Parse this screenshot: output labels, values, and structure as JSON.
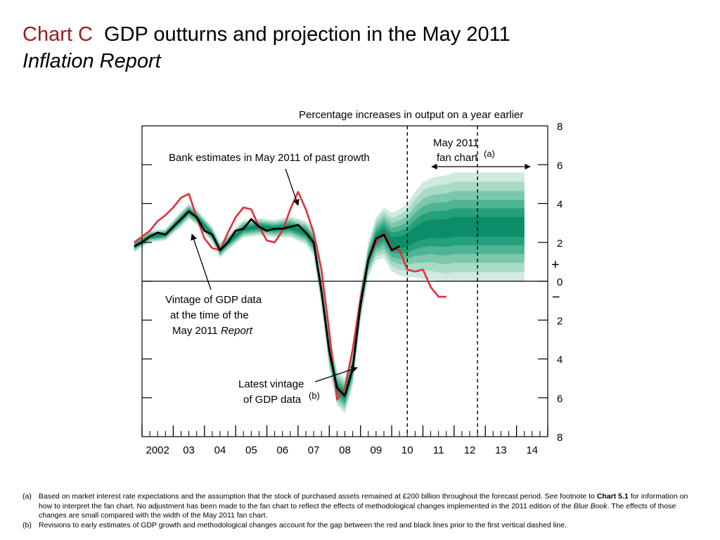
{
  "slide": {
    "title_tag": "Chart C",
    "title_main": "GDP outturns and projection in the May 2011",
    "title_sub": "Inflation Report"
  },
  "chart_data": {
    "type": "line",
    "title": "Percentage increases in output on a year earlier",
    "xlabels": [
      "2002",
      "03",
      "04",
      "05",
      "06",
      "07",
      "08",
      "09",
      "10",
      "11",
      "12",
      "13",
      "14"
    ],
    "xlim": [
      2002.0,
      2015.0
    ],
    "ylim": [
      -8,
      8
    ],
    "yticks_right": [
      "8",
      "6",
      "4",
      "2",
      "0",
      "2",
      "4",
      "6",
      "8"
    ],
    "sign_plus": "+",
    "sign_minus": "−",
    "vlines_dashed": [
      2010.5,
      2012.75
    ],
    "zero_line": 0,
    "fan_region_label_line1": "May 2011",
    "fan_region_label_line2": "fan chart",
    "fan_region_label_note": "(a)",
    "colors": {
      "red": "#e0303a",
      "black": "#000000",
      "fan_light": "#bfe3d3",
      "fan_mid": "#52b596",
      "fan_dark": "#0f8a68"
    },
    "annotations": {
      "bank_estimates": "Bank estimates in May 2011 of past growth",
      "vintage_line1": "Vintage of GDP data",
      "vintage_line2": "at the time of the",
      "vintage_line3_a": "May 2011 ",
      "vintage_line3_b": "Report",
      "latest_line1": "Latest vintage",
      "latest_line2": "of GDP data",
      "latest_note": "(b)"
    },
    "series": [
      {
        "name": "Latest vintage of GDP data",
        "color": "#e0303a",
        "x": [
          2001.75,
          2002.0,
          2002.25,
          2002.5,
          2002.75,
          2003.0,
          2003.25,
          2003.5,
          2003.75,
          2004.0,
          2004.25,
          2004.5,
          2004.75,
          2005.0,
          2005.25,
          2005.5,
          2005.75,
          2006.0,
          2006.25,
          2006.5,
          2006.75,
          2007.0,
          2007.25,
          2007.5,
          2007.75,
          2008.0,
          2008.25,
          2008.5,
          2008.75,
          2009.0,
          2009.25,
          2009.5,
          2009.75,
          2010.0,
          2010.25,
          2010.5,
          2010.75,
          2011.0,
          2011.25,
          2011.5,
          2011.75
        ],
        "values": [
          2.0,
          2.3,
          2.6,
          3.1,
          3.4,
          3.8,
          4.3,
          4.5,
          3.3,
          2.2,
          1.7,
          1.6,
          2.5,
          3.3,
          3.8,
          3.7,
          2.8,
          2.1,
          2.0,
          2.6,
          3.7,
          4.6,
          3.7,
          2.5,
          0.6,
          -2.6,
          -6.1,
          -5.5,
          -3.5,
          -0.9,
          1.1,
          2.0,
          2.5,
          1.7,
          1.6,
          0.6,
          0.5,
          0.6,
          -0.3,
          -0.8,
          -0.8
        ]
      },
      {
        "name": "Vintage of GDP data at the time of the May 2011 Report",
        "color": "#000000",
        "x": [
          2001.75,
          2002.0,
          2002.25,
          2002.5,
          2002.75,
          2003.0,
          2003.25,
          2003.5,
          2003.75,
          2004.0,
          2004.25,
          2004.5,
          2004.75,
          2005.0,
          2005.25,
          2005.5,
          2005.75,
          2006.0,
          2006.25,
          2006.5,
          2006.75,
          2007.0,
          2007.25,
          2007.5,
          2007.75,
          2008.0,
          2008.25,
          2008.5,
          2008.75,
          2009.0,
          2009.25,
          2009.5,
          2009.75,
          2010.0,
          2010.25
        ],
        "values": [
          1.8,
          2.0,
          2.3,
          2.5,
          2.4,
          2.8,
          3.2,
          3.6,
          3.3,
          2.6,
          2.4,
          1.6,
          2.0,
          2.6,
          2.7,
          3.2,
          2.8,
          2.6,
          2.7,
          2.7,
          2.8,
          2.9,
          2.5,
          2.0,
          -0.5,
          -3.6,
          -5.5,
          -5.9,
          -4.5,
          -1.2,
          1.1,
          2.2,
          2.4,
          1.6,
          1.8
        ]
      },
      {
        "name": "Bank estimates in May 2011 of past growth (fan band)",
        "x": [
          2001.75,
          2002.25,
          2002.75,
          2003.25,
          2003.5,
          2003.75,
          2004.25,
          2004.5,
          2004.75,
          2005.25,
          2005.75,
          2006.25,
          2006.75,
          2007.25,
          2007.5,
          2007.75,
          2008.0,
          2008.25,
          2008.5,
          2008.75,
          2009.0,
          2009.25,
          2009.5,
          2009.75,
          2010.0,
          2010.25,
          2010.5,
          2010.75,
          2011.0,
          2011.25,
          2011.5,
          2011.75,
          2012.0,
          2012.25,
          2012.5,
          2012.75,
          2013.0,
          2013.25,
          2013.5,
          2013.75,
          2014.0,
          2014.25
        ],
        "center": [
          1.8,
          2.3,
          2.4,
          3.2,
          3.6,
          3.3,
          2.4,
          1.6,
          2.0,
          2.7,
          2.8,
          2.7,
          2.8,
          2.5,
          2.0,
          -0.5,
          -3.6,
          -5.5,
          -5.9,
          -4.5,
          -1.2,
          1.1,
          2.2,
          2.5,
          2.0,
          2.0,
          2.1,
          2.4,
          2.6,
          2.7,
          2.7,
          2.7,
          2.8,
          2.8,
          2.8,
          2.8,
          2.8,
          2.8,
          2.8,
          2.8,
          2.8,
          2.8
        ],
        "outer_half_width": [
          0.3,
          0.3,
          0.3,
          0.4,
          0.4,
          0.4,
          0.4,
          0.4,
          0.4,
          0.45,
          0.45,
          0.45,
          0.55,
          0.6,
          0.7,
          0.8,
          0.9,
          0.9,
          0.9,
          0.9,
          0.9,
          0.9,
          1.1,
          1.3,
          1.5,
          1.7,
          1.9,
          2.2,
          2.5,
          2.6,
          2.7,
          2.75,
          2.8,
          2.8,
          2.8,
          2.8,
          2.8,
          2.8,
          2.8,
          2.8,
          2.8,
          2.8
        ]
      }
    ]
  },
  "footnotes": [
    {
      "key": "(a)",
      "t1": "Based on market interest rate expectations and the assumption that the stock of purchased assets remained at £200 billion throughout the forecast period.  See footnote to ",
      "b1": "Chart 5.1",
      "t2": "for information on how to interpret the fan chart.  No adjustment has been made to the fan chart to reflect the effects of methodological changes implemented in the 2011 edition of the",
      "i1": "Blue Book",
      "t3": ".  The effects of those changes are small compared with the width of the May 2011 fan chart."
    },
    {
      "key": "(b)",
      "t1": "Revisions to early estimates of GDP growth and methodological changes account for the gap between the red and black lines prior to the first vertical dashed line."
    }
  ]
}
